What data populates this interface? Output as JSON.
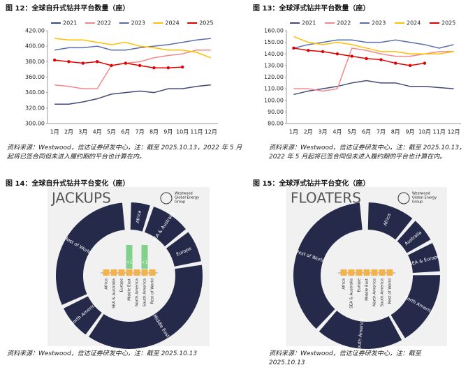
{
  "chart_data": [
    {
      "type": "line",
      "title": "图 12：全球自升式钻井平台数量（座）",
      "categories": [
        "1月",
        "2月",
        "3月",
        "4月",
        "5月",
        "6月",
        "7月",
        "8月",
        "9月",
        "10月",
        "11月",
        "12月"
      ],
      "series": [
        {
          "name": "2021",
          "color": "#3f4a78",
          "values": [
            325,
            325,
            328,
            332,
            338,
            340,
            342,
            340,
            345,
            345,
            348,
            350
          ]
        },
        {
          "name": "2022",
          "color": "#f4878a",
          "values": [
            350,
            348,
            345,
            345,
            375,
            378,
            380,
            385,
            388,
            390,
            395,
            395
          ]
        },
        {
          "name": "2023",
          "color": "#5a6ea8",
          "values": [
            395,
            398,
            398,
            400,
            395,
            395,
            398,
            400,
            402,
            405,
            408,
            410
          ]
        },
        {
          "name": "2024",
          "color": "#ffc000",
          "values": [
            410,
            408,
            408,
            405,
            402,
            405,
            400,
            398,
            395,
            395,
            392,
            385
          ]
        },
        {
          "name": "2025",
          "color": "#e00000",
          "values": [
            382,
            380,
            378,
            380,
            375,
            378,
            375,
            372,
            372,
            373,
            null,
            null
          ]
        }
      ],
      "ylim": [
        300,
        420
      ],
      "yticks": [
        {
          "value": 300,
          "label": "300.00"
        },
        {
          "value": 320,
          "label": "320.00"
        },
        {
          "value": 340,
          "label": "340.00"
        },
        {
          "value": 360,
          "label": "360.00"
        },
        {
          "value": 380,
          "label": "380.00"
        },
        {
          "value": 400,
          "label": "400.00"
        },
        {
          "value": 420,
          "label": "420.00"
        }
      ],
      "grid": false,
      "markers": "2025",
      "source": "资料来源：Westwood，信达证券研发中心，注：截至 2025.10.13，2022 年 5 月起将已签合同但未进入履约期的平台也计算在内。"
    },
    {
      "type": "line",
      "title": "图 13：全球浮式钻井平台数量（座）",
      "categories": [
        "1月",
        "2月",
        "3月",
        "4月",
        "5月",
        "6月",
        "7月",
        "8月",
        "9月",
        "10月",
        "11月",
        "12月"
      ],
      "series": [
        {
          "name": "2021",
          "color": "#3f4a78",
          "values": [
            105,
            108,
            110,
            112,
            115,
            117,
            115,
            115,
            112,
            112,
            111,
            110
          ]
        },
        {
          "name": "2022",
          "color": "#f4878a",
          "values": [
            110,
            110,
            108,
            110,
            145,
            143,
            140,
            138,
            138,
            140,
            142,
            142
          ]
        },
        {
          "name": "2023",
          "color": "#5a6ea8",
          "values": [
            145,
            148,
            150,
            152,
            152,
            150,
            150,
            152,
            150,
            148,
            145,
            148
          ]
        },
        {
          "name": "2024",
          "color": "#ffc000",
          "values": [
            155,
            150,
            148,
            150,
            148,
            145,
            142,
            142,
            140,
            140,
            140,
            142
          ]
        },
        {
          "name": "2025",
          "color": "#e00000",
          "values": [
            145,
            143,
            142,
            140,
            138,
            136,
            135,
            132,
            130,
            132,
            null,
            null
          ]
        }
      ],
      "ylim": [
        80,
        160
      ],
      "yticks": [
        {
          "value": 80,
          "label": "80.00"
        },
        {
          "value": 90,
          "label": "90.00"
        },
        {
          "value": 100,
          "label": "100.00"
        },
        {
          "value": 110,
          "label": "110.00"
        },
        {
          "value": 120,
          "label": "120.00"
        },
        {
          "value": 130,
          "label": "130.00"
        },
        {
          "value": 140,
          "label": "140.00"
        },
        {
          "value": 150,
          "label": "150.00"
        },
        {
          "value": 160,
          "label": "160.00"
        }
      ],
      "grid": false,
      "markers": "2025",
      "source": "资料来源：Westwood，信达证券研发中心，注：截至 2025.10.13，2022 年 5 月起将已签合同但未进入履约期的平台也计算在内。"
    }
  ],
  "diagrams": [
    {
      "caption": "图 14：全球自升式钻井平台变化（座）",
      "title": "JACKUPS",
      "logo": [
        "Westwood",
        "Global Energy",
        "Group"
      ],
      "segments": [
        "Africa",
        "SEA & Australia",
        "Europe",
        "Middle East",
        "North America",
        "Rest of World"
      ],
      "bars": [
        {
          "name": "Africa"
        },
        {
          "name": "SEA & Australia"
        },
        {
          "name": "Europe"
        },
        {
          "name": "Middle East",
          "change": "+1"
        },
        {
          "name": "North America"
        },
        {
          "name": "South America",
          "change": "+1"
        },
        {
          "name": "Rest of World"
        }
      ],
      "source": "资料来源：Westwood，信达证券研发中心，注：截至 2025.10.13"
    },
    {
      "caption": "图 15：全球浮式钻井平台变化（座）",
      "title": "FLOATERS",
      "logo": [
        "Westwood",
        "Global Energy",
        "Group"
      ],
      "segments": [
        "Africa",
        "Australia",
        "SEA & Europe",
        "North America",
        "South America",
        "Rest of World"
      ],
      "bars": [
        {
          "name": "Africa"
        },
        {
          "name": "SEA & Australia"
        },
        {
          "name": "Europe"
        },
        {
          "name": "Middle East"
        },
        {
          "name": "North America"
        },
        {
          "name": "South America"
        },
        {
          "name": "Rest of World"
        }
      ],
      "source": "资料来源：Westwood，信达证券研发中心，注：截至 2025.10.13"
    }
  ]
}
